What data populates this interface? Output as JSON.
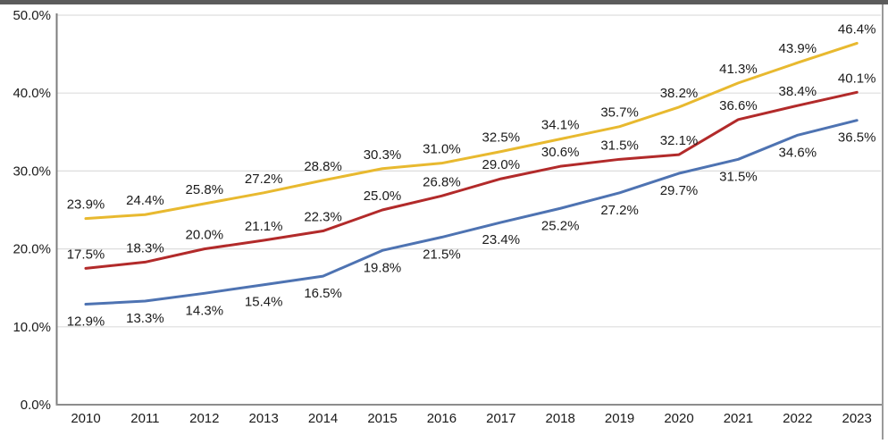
{
  "window": {
    "top_edge_color": "#5c5c5c",
    "right_border_color": "#9a9a9a",
    "background_color": "#ffffff"
  },
  "chart_data": {
    "type": "line",
    "title": "",
    "xlabel": "",
    "ylabel": "",
    "categories": [
      "2010",
      "2011",
      "2012",
      "2013",
      "2014",
      "2015",
      "2016",
      "2017",
      "2018",
      "2019",
      "2020",
      "2021",
      "2022",
      "2023"
    ],
    "series": [
      {
        "name": "top-series-yellow",
        "color": "#e8b92f",
        "label_position": "above",
        "values": [
          23.9,
          24.4,
          25.8,
          27.2,
          28.8,
          30.3,
          31.0,
          32.5,
          34.1,
          35.7,
          38.2,
          41.3,
          43.9,
          46.4
        ]
      },
      {
        "name": "middle-series-red",
        "color": "#b22a2a",
        "label_position": "above",
        "values": [
          17.5,
          18.3,
          20.0,
          21.1,
          22.3,
          25.0,
          26.8,
          29.0,
          30.6,
          31.5,
          32.1,
          36.6,
          38.4,
          40.1
        ]
      },
      {
        "name": "bottom-series-blue",
        "color": "#4e73b2",
        "label_position": "below",
        "values": [
          12.9,
          13.3,
          14.3,
          15.4,
          16.5,
          19.8,
          21.5,
          23.4,
          25.2,
          27.2,
          29.7,
          31.5,
          34.6,
          36.5
        ]
      }
    ],
    "y_ticks": [
      {
        "value": 0,
        "label": "0.0%"
      },
      {
        "value": 10,
        "label": "10.0%"
      },
      {
        "value": 20,
        "label": "20.0%"
      },
      {
        "value": 30,
        "label": "30.0%"
      },
      {
        "value": 40,
        "label": "40.0%"
      },
      {
        "value": 50,
        "label": "50.0%"
      }
    ],
    "ylim": [
      0,
      50
    ],
    "grid": "horizontal-only",
    "legend": "none",
    "data_label_format": "0.0%",
    "colors": {
      "gridline": "#dddddd",
      "y_axis_line": "#7d7d7d",
      "x_axis_line": "#8c8c8c",
      "label_text": "#1a1a1a"
    }
  }
}
